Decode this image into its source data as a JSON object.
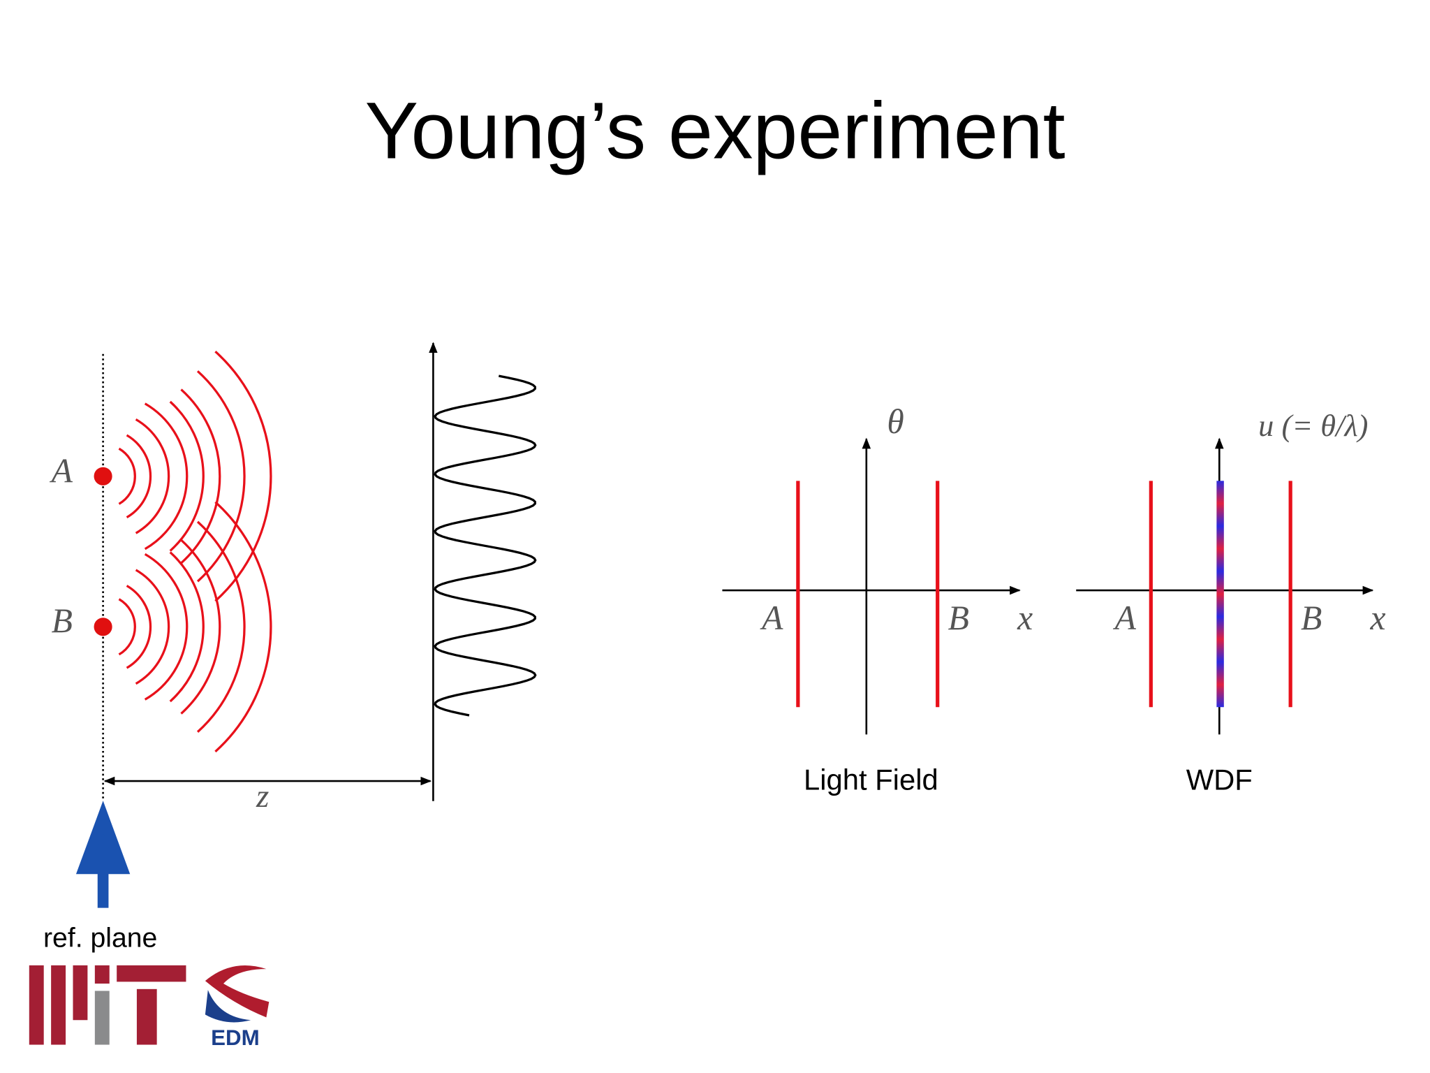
{
  "title": "Young’s experiment",
  "setup": {
    "sources": [
      "A",
      "B"
    ],
    "distance": "z",
    "ref_plane": "ref. plane"
  },
  "light_field": {
    "y_axis": "θ",
    "x_axis": "x",
    "points": [
      "A",
      "B"
    ],
    "caption": "Light Field"
  },
  "wdf": {
    "y_axis": "u (= θ/λ)",
    "x_axis": "x",
    "points": [
      "A",
      "B"
    ],
    "caption": "WDF"
  },
  "logo": {
    "text": "EDM"
  }
}
